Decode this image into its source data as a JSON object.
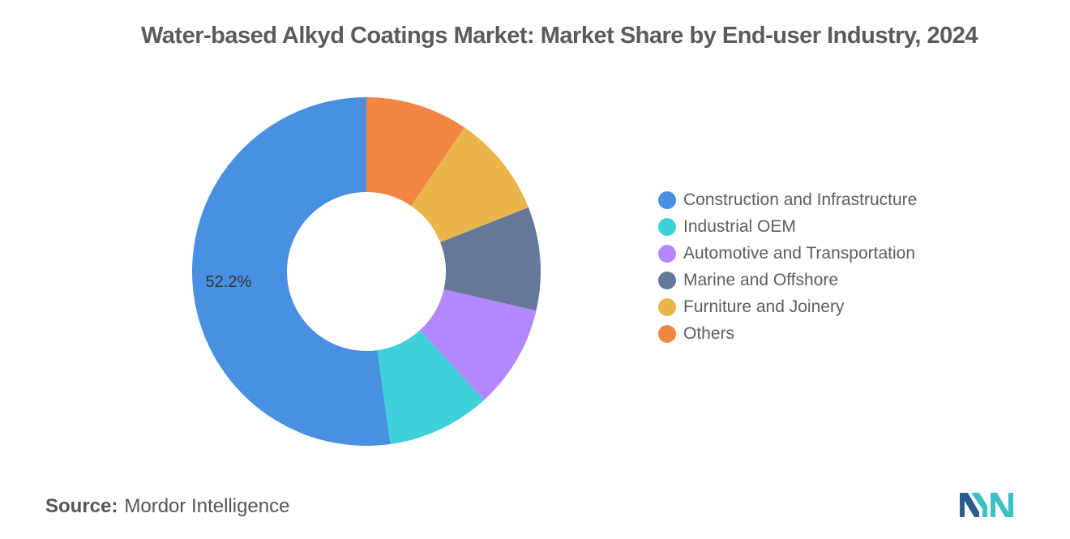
{
  "chart_data": {
    "type": "pie",
    "variant": "donut",
    "title": "Water-based Alkyd Coatings Market: Market Share by End-user Industry, 2024",
    "categories": [
      "Construction and Infrastructure",
      "Industrial OEM",
      "Automotive and Transportation",
      "Marine and Offshore",
      "Furniture and Joinery",
      "Others"
    ],
    "values": [
      52.2,
      9.6,
      9.6,
      9.6,
      9.5,
      9.5
    ],
    "colors": [
      "#4a90e2",
      "#3fd0d9",
      "#b388ff",
      "#66789a",
      "#eab54b",
      "#f28444"
    ],
    "data_labels": [
      {
        "category": "Construction and Infrastructure",
        "text": "52.2%"
      }
    ],
    "legend_position": "right"
  },
  "source": {
    "label": "Source:",
    "text": "Mordor Intelligence"
  },
  "logo": {
    "icon": "mordor-intelligence-logo",
    "colors": [
      "#2a5c8f",
      "#3ec0c9"
    ]
  }
}
